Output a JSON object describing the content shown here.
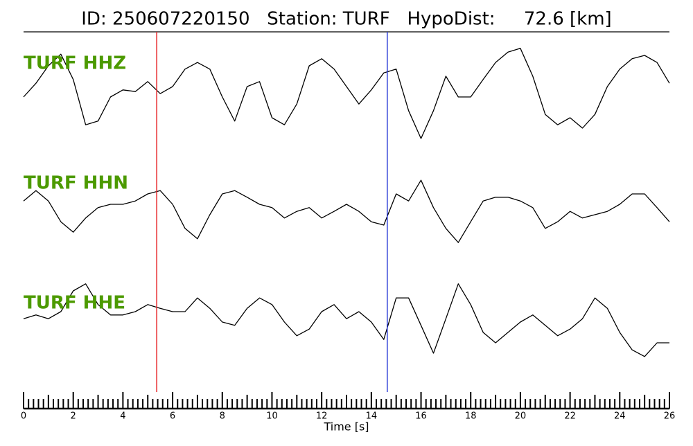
{
  "chart_data": {
    "type": "line",
    "title": "ID: 250607220150   Station: TURF   HypoDist:     72.6 [km]",
    "xlabel": "Time [s]",
    "xlim": [
      0,
      26
    ],
    "xticks": [
      0,
      2,
      4,
      6,
      8,
      10,
      12,
      14,
      16,
      18,
      20,
      22,
      24,
      26
    ],
    "xminorticks": [
      0.2,
      0.4,
      0.6,
      0.8,
      1,
      1.2,
      1.4,
      1.6,
      1.8,
      2.2,
      2.4,
      2.6,
      2.8,
      3,
      3.2,
      3.4,
      3.6,
      3.8,
      4.2,
      4.4,
      4.6,
      4.8,
      5,
      5.2,
      5.4,
      5.6,
      5.8,
      6.2,
      6.4,
      6.6,
      6.8,
      7,
      7.2,
      7.4,
      7.6,
      7.8,
      8.2,
      8.4,
      8.6,
      8.8,
      9,
      9.2,
      9.4,
      9.6,
      9.8,
      10.2,
      10.4,
      10.6,
      10.8,
      11,
      11.2,
      11.4,
      11.6,
      11.8,
      12.2,
      12.4,
      12.6,
      12.8,
      13,
      13.2,
      13.4,
      13.6,
      13.8,
      14.2,
      14.4,
      14.6,
      14.8,
      15,
      15.2,
      15.4,
      15.6,
      15.8,
      16.2,
      16.4,
      16.6,
      16.8,
      17,
      17.2,
      17.4,
      17.6,
      17.8,
      18.2,
      18.4,
      18.6,
      18.8,
      19,
      19.2,
      19.4,
      19.6,
      19.8,
      20.2,
      20.4,
      20.6,
      20.8,
      21,
      21.2,
      21.4,
      21.6,
      21.8,
      22.2,
      22.4,
      22.6,
      22.8,
      23,
      23.2,
      23.4,
      23.6,
      23.8,
      24.2,
      24.4,
      24.6,
      24.8,
      25,
      25.2,
      25.4,
      25.6,
      25.8
    ],
    "markers": [
      {
        "x": 5.36,
        "color": "#e8262a"
      },
      {
        "x": 14.64,
        "color": "#2b3bd6"
      }
    ],
    "x": [
      0,
      0.5,
      1,
      1.5,
      2,
      2.5,
      3,
      3.5,
      4,
      4.5,
      5,
      5.5,
      6,
      6.5,
      7,
      7.5,
      8,
      8.5,
      9,
      9.5,
      10,
      10.5,
      11,
      11.5,
      12,
      12.5,
      13,
      13.5,
      14,
      14.5,
      15,
      15.5,
      16,
      16.5,
      17,
      17.5,
      18,
      18.5,
      19,
      19.5,
      20,
      20.5,
      21,
      21.5,
      22,
      22.5,
      23,
      23.5,
      24,
      24.5,
      25,
      25.5,
      26
    ],
    "series": [
      {
        "name": "TURF HHZ",
        "color": "#000000",
        "label_color": "#4c9a00",
        "values": [
          -0.25,
          0.08,
          0.5,
          0.78,
          0.17,
          -0.92,
          -0.83,
          -0.25,
          -0.08,
          -0.12,
          0.12,
          -0.17,
          0,
          0.42,
          0.58,
          0.42,
          -0.25,
          -0.83,
          0,
          0.12,
          -0.75,
          -0.92,
          -0.42,
          0.5,
          0.67,
          0.42,
          0,
          -0.42,
          -0.08,
          0.33,
          0.42,
          -0.58,
          -1.25,
          -0.58,
          0.25,
          -0.25,
          -0.25,
          0.17,
          0.58,
          0.83,
          0.92,
          0.25,
          -0.67,
          -0.92,
          -0.75,
          -1,
          -0.67,
          0,
          0.42,
          0.67,
          0.75,
          0.58,
          0.08
        ]
      },
      {
        "name": "TURF HHN",
        "color": "#000000",
        "label_color": "#4c9a00",
        "values": [
          0.08,
          0.33,
          0.08,
          -0.42,
          -0.67,
          -0.33,
          -0.08,
          0,
          0,
          0.08,
          0.25,
          0.33,
          0,
          -0.58,
          -0.83,
          -0.25,
          0.25,
          0.33,
          0.17,
          0,
          -0.08,
          -0.33,
          -0.17,
          -0.08,
          -0.33,
          -0.17,
          0,
          -0.17,
          -0.42,
          -0.5,
          0.25,
          0.08,
          0.58,
          -0.08,
          -0.58,
          -0.92,
          -0.42,
          0.08,
          0.17,
          0.17,
          0.08,
          -0.08,
          -0.58,
          -0.42,
          -0.17,
          -0.33,
          -0.25,
          -0.17,
          0,
          0.25,
          0.25,
          -0.08,
          -0.42
        ]
      },
      {
        "name": "TURF HHE",
        "color": "#000000",
        "label_color": "#4c9a00",
        "values": [
          0.08,
          0.17,
          0.08,
          0.25,
          0.75,
          0.92,
          0.42,
          0.17,
          0.17,
          0.25,
          0.42,
          0.33,
          0.25,
          0.25,
          0.58,
          0.33,
          0,
          -0.08,
          0.33,
          0.58,
          0.42,
          0,
          -0.33,
          -0.17,
          0.25,
          0.42,
          0.08,
          0.25,
          0,
          -0.42,
          0.58,
          0.58,
          -0.08,
          -0.75,
          0.08,
          0.92,
          0.42,
          -0.25,
          -0.5,
          -0.25,
          0,
          0.17,
          -0.08,
          -0.33,
          -0.17,
          0.08,
          0.58,
          0.33,
          -0.25,
          -0.67,
          -0.83,
          -0.5,
          -0.5
        ]
      }
    ]
  }
}
